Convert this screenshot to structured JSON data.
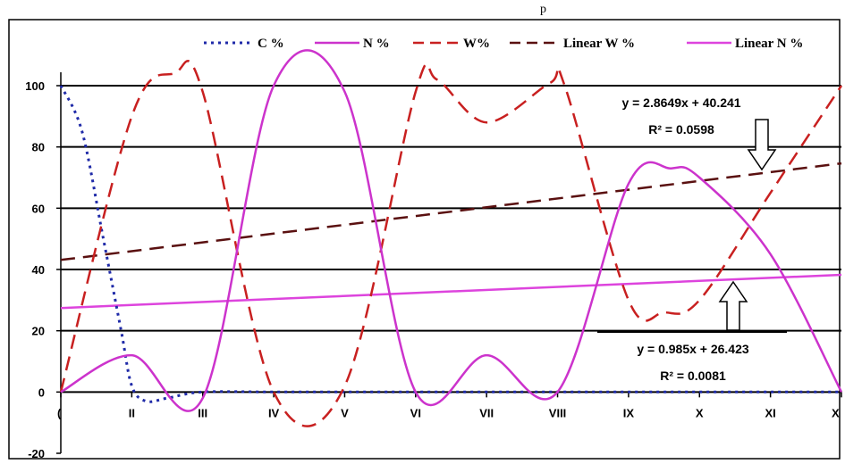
{
  "top_label": "p",
  "chart_data": {
    "type": "line",
    "title": "",
    "xlabel": "",
    "ylabel": "",
    "ylim": [
      -20,
      100
    ],
    "y_ticks": [
      -20,
      0,
      20,
      40,
      60,
      80,
      100
    ],
    "x_categories": [
      "I",
      "II",
      "III",
      "IV",
      "V",
      "VI",
      "VII",
      "VIII",
      "IX",
      "X",
      "XI",
      "XII"
    ],
    "x_tick_labels": [
      "",
      "II",
      "III",
      "IV",
      "V",
      "VI",
      "VII",
      "VIII",
      "IX",
      "X",
      "XI",
      "X"
    ],
    "grid": "horizontal",
    "legend": {
      "placement": "top",
      "entries": [
        "C %",
        "N %",
        "W%",
        "Linear W %",
        "Linear N %"
      ]
    },
    "series": [
      {
        "name": "C %",
        "color": "#1f2aa8",
        "style": "dotted",
        "smooth": true,
        "points": [
          [
            1,
            100
          ],
          [
            1.3,
            85
          ],
          [
            1.6,
            50
          ],
          [
            1.85,
            20
          ],
          [
            2.0,
            2
          ],
          [
            2.2,
            -3
          ],
          [
            2.5,
            -2
          ],
          [
            3,
            0
          ],
          [
            4,
            0
          ],
          [
            5,
            0
          ],
          [
            6,
            0
          ],
          [
            7,
            0
          ],
          [
            8,
            0
          ],
          [
            9,
            0
          ],
          [
            10,
            0
          ],
          [
            11,
            0
          ],
          [
            12,
            0
          ]
        ]
      },
      {
        "name": "N %",
        "color": "#cc33cc",
        "style": "solid",
        "smooth": true,
        "points": [
          [
            1,
            0
          ],
          [
            2,
            12
          ],
          [
            3,
            -2
          ],
          [
            4,
            100
          ],
          [
            5,
            98
          ],
          [
            6,
            0
          ],
          [
            7,
            12
          ],
          [
            8,
            0
          ],
          [
            9,
            68
          ],
          [
            9.6,
            73
          ],
          [
            10,
            70
          ],
          [
            11,
            45
          ],
          [
            12,
            0
          ]
        ]
      },
      {
        "name": "W%",
        "color": "#c82020",
        "style": "dashed",
        "smooth": true,
        "points": [
          [
            1,
            0
          ],
          [
            2,
            90
          ],
          [
            2.6,
            104
          ],
          [
            3,
            98
          ],
          [
            4,
            0
          ],
          [
            5,
            2
          ],
          [
            6,
            98
          ],
          [
            6.3,
            102
          ],
          [
            7,
            88
          ],
          [
            7.9,
            101
          ],
          [
            8.1,
            100
          ],
          [
            9,
            30
          ],
          [
            9.5,
            26
          ],
          [
            10,
            30
          ],
          [
            11,
            65
          ],
          [
            12,
            100
          ]
        ]
      },
      {
        "name": "Linear W %",
        "color": "#5a1010",
        "style": "dashed",
        "smooth": false,
        "points": [
          [
            1,
            43.1059
          ],
          [
            12,
            74.62
          ]
        ]
      },
      {
        "name": "Linear N %",
        "color": "#dd44dd",
        "style": "solid",
        "smooth": false,
        "points": [
          [
            1,
            27.408
          ],
          [
            12,
            38.243
          ]
        ]
      }
    ],
    "annotations": [
      {
        "lines": [
          "y = 2.8649x + 40.241",
          "R² = 0.0598"
        ],
        "points_to": "Linear W %"
      },
      {
        "lines": [
          "y = 0.985x + 26.423",
          "R² = 0.0081"
        ],
        "points_to": "Linear N %"
      }
    ]
  }
}
